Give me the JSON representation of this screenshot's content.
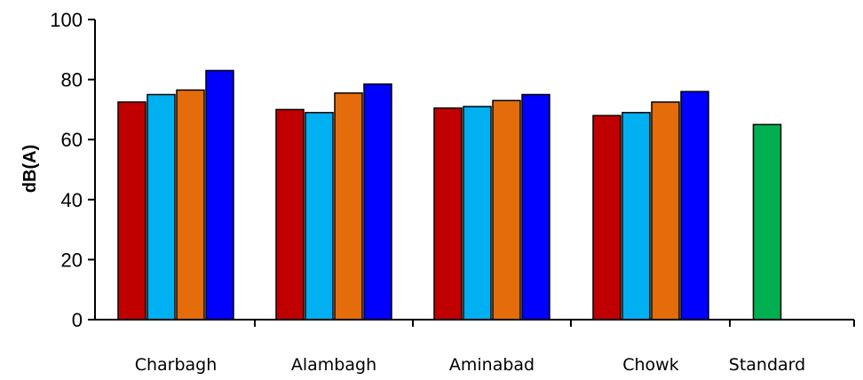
{
  "chart_data": {
    "type": "bar",
    "title": "",
    "xlabel": "",
    "ylabel": "dB(A)",
    "ylim": [
      0,
      100
    ],
    "yticks": [
      0,
      20,
      40,
      60,
      80,
      100
    ],
    "grid": false,
    "legend": "none",
    "categories": [
      "Charbagh",
      "Alambagh",
      "Aminabad",
      "Chowk",
      "Standard"
    ],
    "series": [
      {
        "color": "#c00000",
        "values": [
          72.5,
          70,
          70.5,
          68,
          null
        ]
      },
      {
        "color": "#00b0f0",
        "values": [
          75,
          69,
          71,
          69,
          null
        ]
      },
      {
        "color": "#e46c0a",
        "values": [
          76.5,
          75.5,
          73,
          72.5,
          null
        ]
      },
      {
        "color": "#0000ff",
        "values": [
          83,
          78.5,
          75,
          76,
          null
        ]
      },
      {
        "color": "#00b050",
        "values": [
          null,
          null,
          null,
          null,
          65
        ]
      }
    ]
  }
}
